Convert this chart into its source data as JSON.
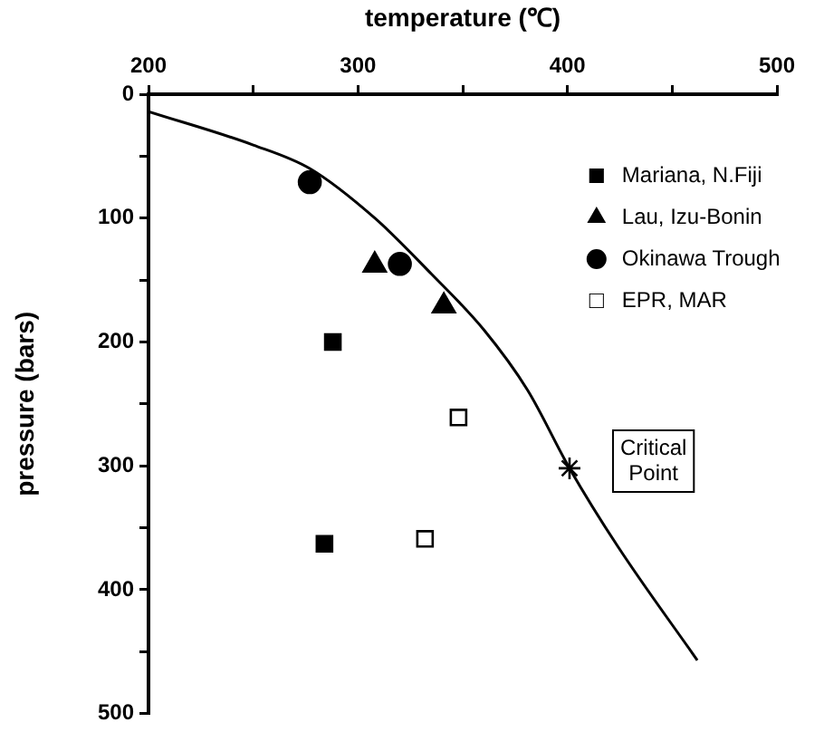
{
  "chart_data": {
    "type": "scatter",
    "xlabel": "temperature (℃)",
    "ylabel": "pressure (bars)",
    "xlim": [
      200,
      500
    ],
    "xticks": [
      200,
      {
        "value": 250,
        "label": null
      },
      300,
      {
        "value": 350,
        "label": null
      },
      400,
      {
        "value": 450,
        "label": null
      },
      500
    ],
    "ylim": [
      500,
      0
    ],
    "yticks": [
      0,
      {
        "value": 50,
        "label": null
      },
      100,
      {
        "value": 150,
        "label": null
      },
      200,
      {
        "value": 250,
        "label": null
      },
      300,
      {
        "value": 350,
        "label": null
      },
      400,
      {
        "value": 450,
        "label": null
      },
      500
    ],
    "grid": false,
    "legend": "top right",
    "series": [
      {
        "type": "line",
        "color": "#000000",
        "marker": "none",
        "line_style": "solid",
        "x": [
          200,
          250,
          277,
          308,
          335,
          360,
          381,
          401,
          424,
          462
        ],
        "values": [
          14,
          41,
          60,
          100,
          145,
          190,
          239,
          302,
          365,
          457
        ]
      },
      {
        "name": "Mariana, N.Fiji",
        "color": "#000000",
        "marker": "square",
        "x": [
          288,
          284
        ],
        "values": [
          200,
          363
        ]
      },
      {
        "name": "Lau, Izu-Bonin",
        "color": "#000000",
        "marker": "triangle",
        "x": [
          308,
          341
        ],
        "values": [
          138,
          171
        ]
      },
      {
        "name": "Okinawa Trough",
        "color": "#000000",
        "marker": "circle",
        "x": [
          277,
          320
        ],
        "values": [
          71,
          137
        ]
      },
      {
        "name": "EPR, MAR",
        "color": "#ffffff",
        "marker": "square",
        "x": [
          348,
          332
        ],
        "values": [
          261,
          359
        ]
      },
      {
        "color": "#000000",
        "marker": "cross",
        "x": [
          401
        ],
        "values": [
          302
        ]
      }
    ],
    "annotations": [
      {
        "text": "Critical Point",
        "x": 401,
        "y": 302
      }
    ]
  }
}
